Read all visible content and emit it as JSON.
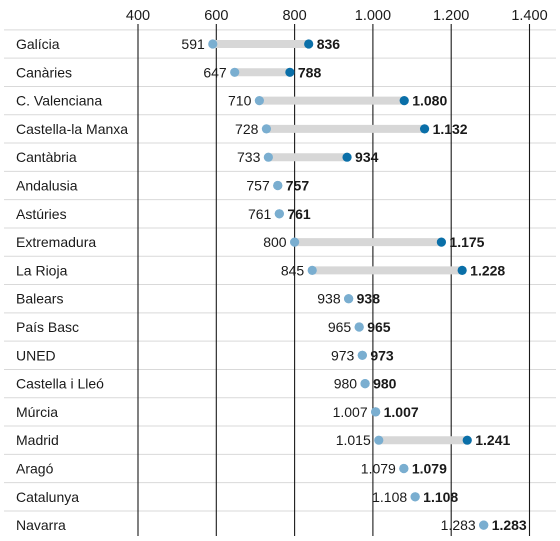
{
  "chart_data": {
    "type": "dumbbell",
    "title": "",
    "xlabel": "",
    "ylabel": "",
    "xlim": [
      300,
      1450
    ],
    "x_ticks": [
      400,
      600,
      800,
      1000,
      1200,
      1400
    ],
    "x_tick_labels": [
      "400",
      "600",
      "800",
      "1.000",
      "1.200",
      "1.400"
    ],
    "grid": true,
    "colors": {
      "low_point": "#7aaed0",
      "high_point": "#0a6fa8",
      "connector": "#d7d7d7",
      "gridline": "#1a1a1a",
      "row_line": "#d9d9d9",
      "text": "#1a1a1a"
    },
    "categories": [
      "Galícia",
      "Canàries",
      "C. Valenciana",
      "Castella-la Manxa",
      "Cantàbria",
      "Andalusia",
      "Astúries",
      "Extremadura",
      "La Rioja",
      "Balears",
      "País Basc",
      "UNED",
      "Castella i Lleó",
      "Múrcia",
      "Madrid",
      "Aragó",
      "Catalunya",
      "Navarra"
    ],
    "series": [
      {
        "values": [
          591,
          647,
          710,
          728,
          733,
          757,
          761,
          800,
          845,
          938,
          965,
          973,
          980,
          1007,
          1015,
          1079,
          1108,
          1283
        ],
        "labels": [
          "591",
          "647",
          "710",
          "728",
          "733",
          "757",
          "761",
          "800",
          "845",
          "938",
          "965",
          "973",
          "980",
          "1.007",
          "1.015",
          "1.079",
          "1.108",
          "1.283"
        ]
      },
      {
        "values": [
          836,
          788,
          1080,
          1132,
          934,
          757,
          761,
          1175,
          1228,
          938,
          965,
          973,
          980,
          1007,
          1241,
          1079,
          1108,
          1283
        ],
        "labels": [
          "836",
          "788",
          "1.080",
          "1.132",
          "934",
          "757",
          "761",
          "1.175",
          "1.228",
          "938",
          "965",
          "973",
          "980",
          "1.007",
          "1.241",
          "1.079",
          "1.108",
          "1.283"
        ]
      }
    ]
  }
}
